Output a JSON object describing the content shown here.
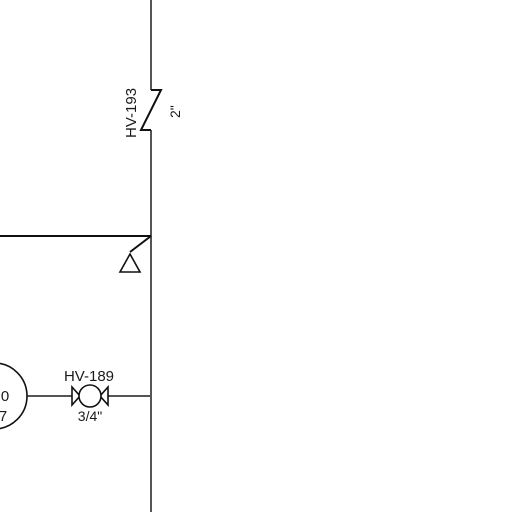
{
  "diagram": {
    "tags": {
      "valve_top": "HV-193",
      "valve_top_size": "2\"",
      "valve_bottom": "HV-189",
      "valve_bottom_size": "3/4\"",
      "instrument_top": "0",
      "instrument_bottom": "7"
    },
    "colors": {
      "background": "#ffffff",
      "line": "#555555",
      "symbol": "#111111"
    }
  }
}
